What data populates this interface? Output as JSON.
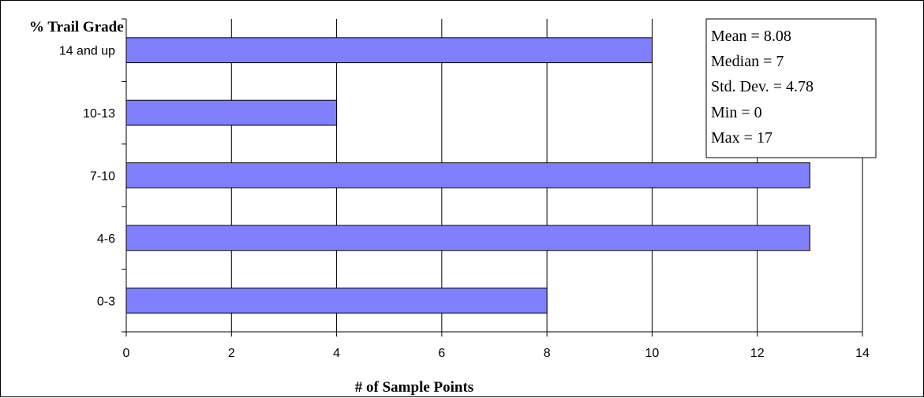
{
  "chart_data": {
    "type": "bar",
    "orientation": "horizontal",
    "title": "% Trail Grade",
    "xlabel": "# of Sample Points",
    "ylabel": "",
    "categories": [
      "0-3",
      "4-6",
      "7-10",
      "10-13",
      "14 and up"
    ],
    "values": [
      8,
      13,
      13,
      4,
      10
    ],
    "xlim": [
      0,
      14
    ],
    "xticks": [
      "0",
      "2",
      "4",
      "6",
      "8",
      "10",
      "12",
      "14"
    ],
    "grid": "vertical-major",
    "legend": "none",
    "bar_color": "#8080ff",
    "annotations": [
      "Mean = 8.08",
      "Median = 7",
      "Std. Dev. = 4.78",
      "Min = 0",
      "Max = 17"
    ],
    "annotation_placement": "top-right"
  }
}
